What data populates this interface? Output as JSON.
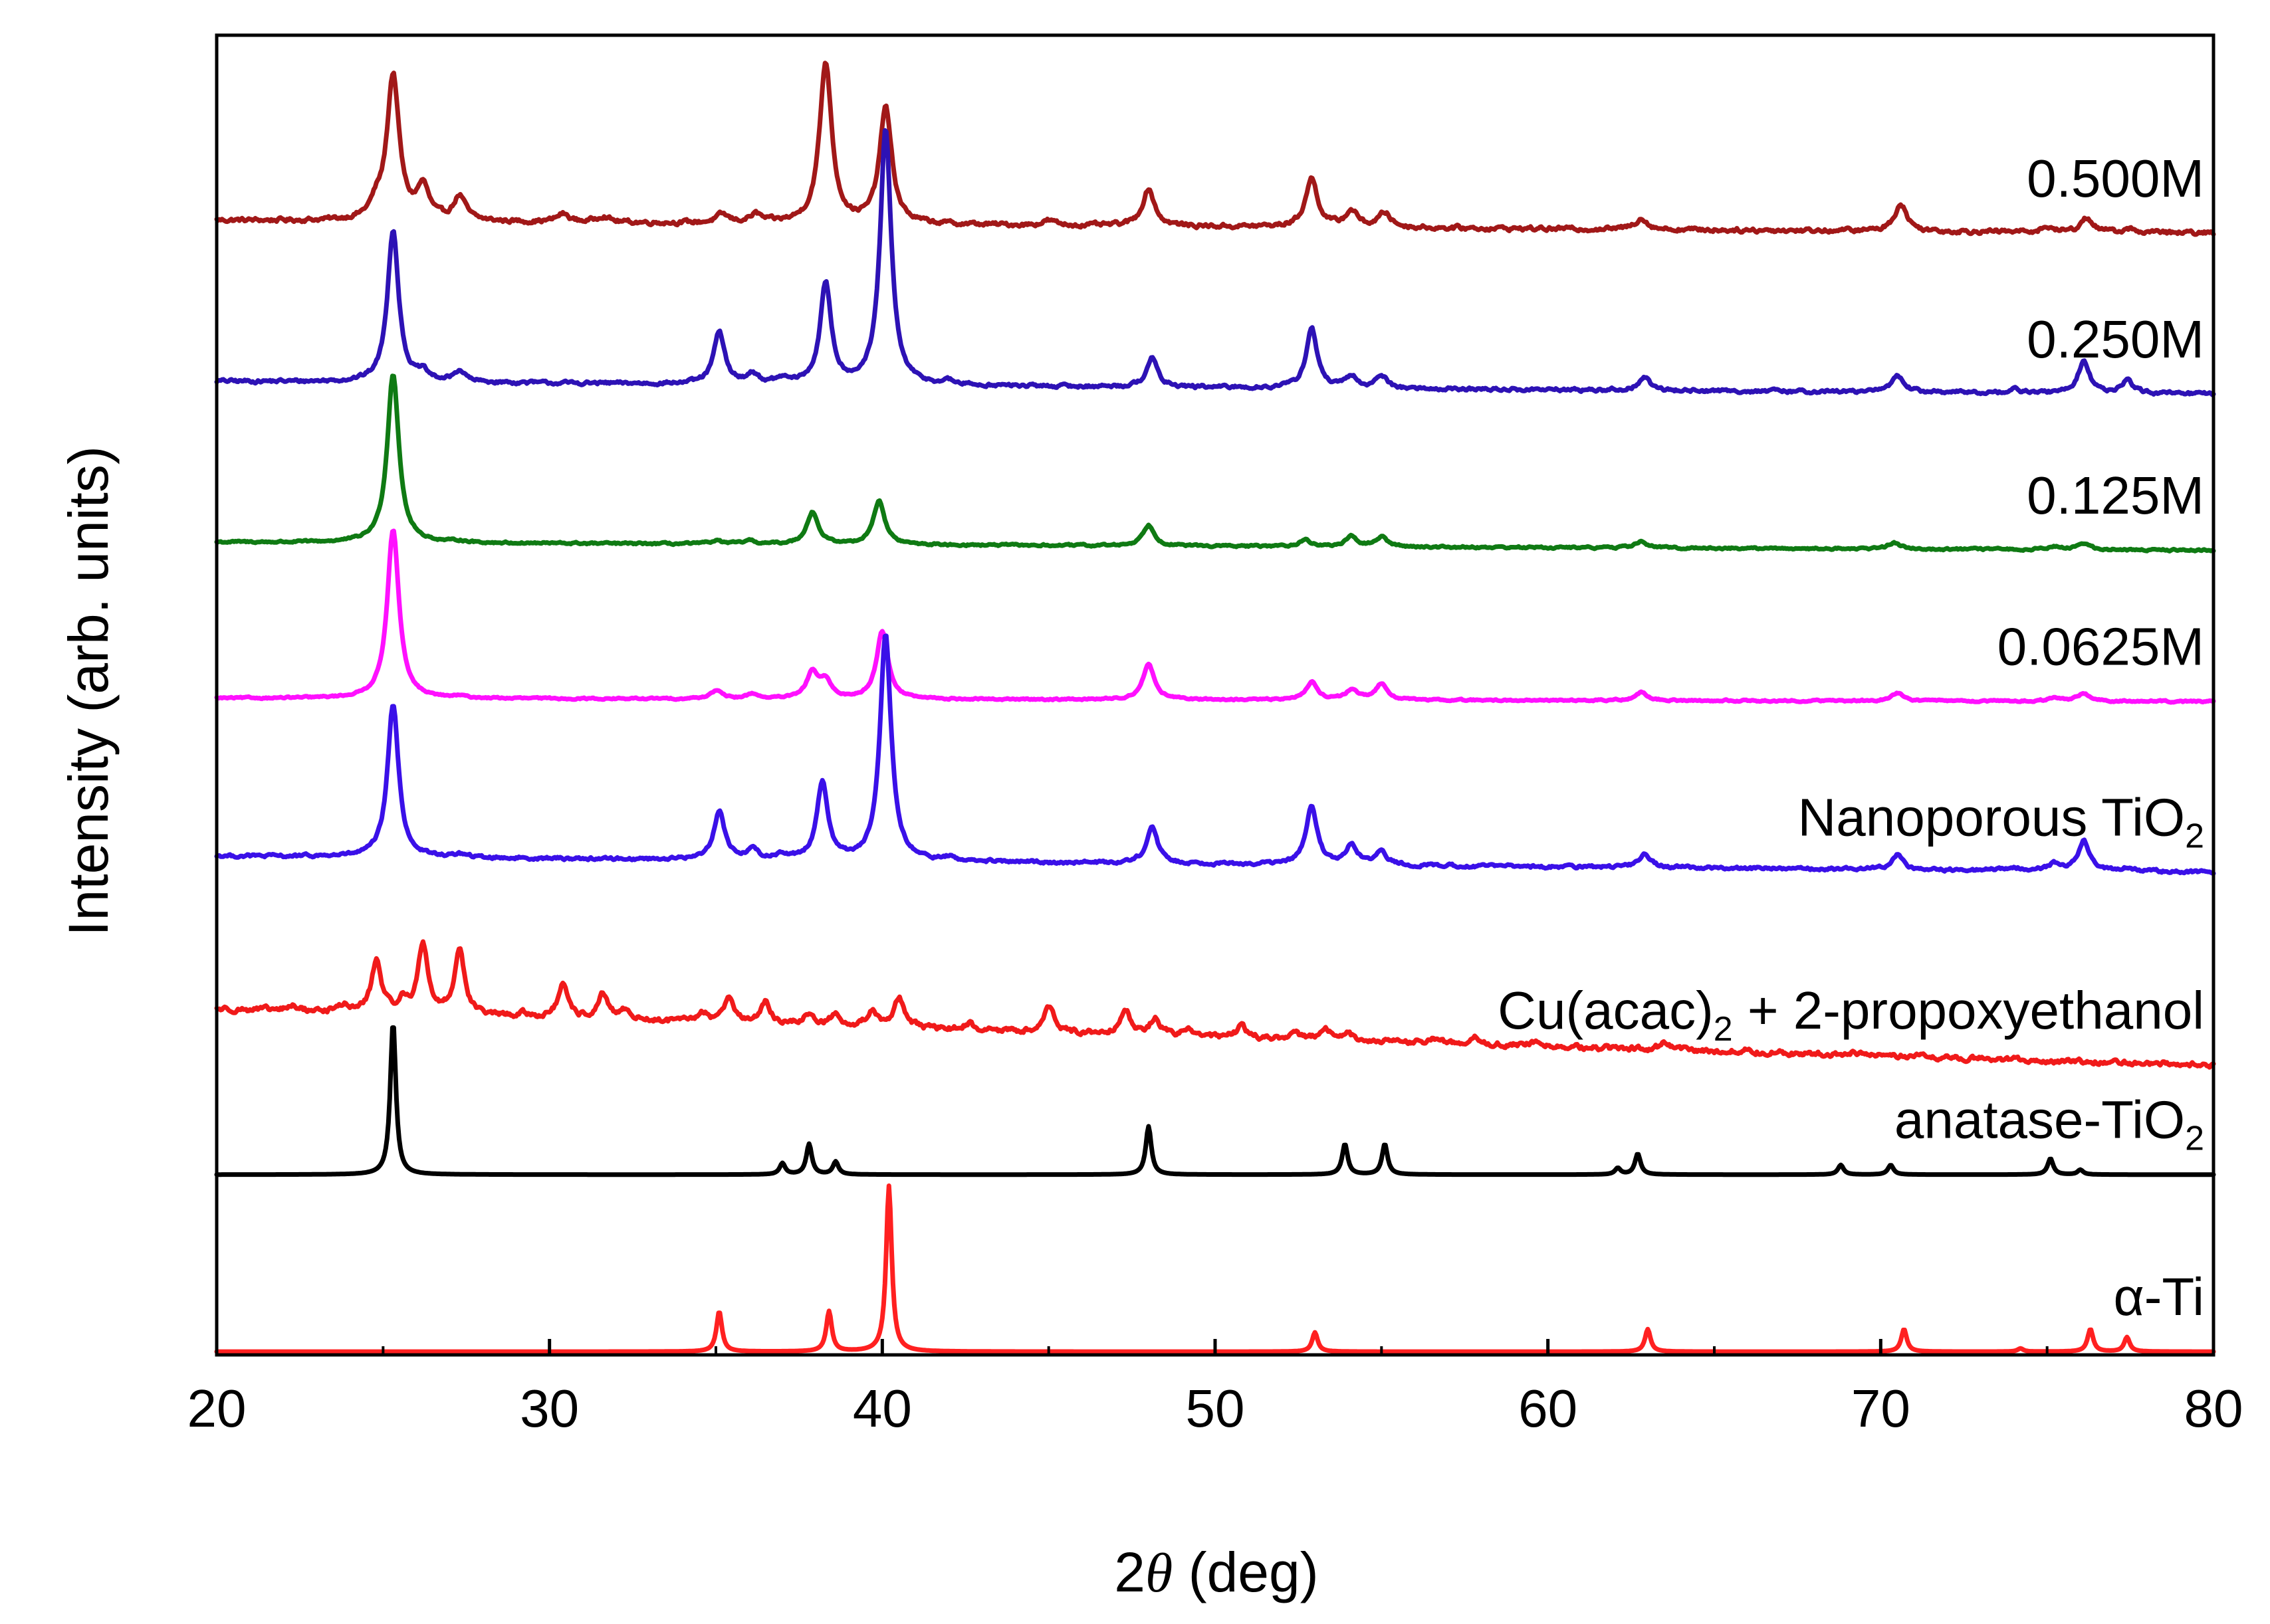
{
  "chart_data": {
    "type": "line",
    "title": "",
    "xlabel_prefix": "2",
    "xlabel_theta": "θ",
    "xlabel_suffix": " (deg)",
    "ylabel": "Intensity (arb. units)",
    "xlim": [
      20,
      80
    ],
    "ylim": [
      0,
      8.2
    ],
    "xticks": [
      20,
      30,
      40,
      50,
      60,
      70,
      80
    ],
    "yticks": [],
    "grid": false,
    "legend": "inline labels at right",
    "layout_note": "stacked XRD patterns, each trace offset vertically by its baseline",
    "series": [
      {
        "name": "0.500M",
        "label_main": "0.500M",
        "label_sub": "",
        "label_tail": "",
        "color": "#a11818",
        "baseline": 7.05,
        "slope": -0.08,
        "noise": 0.025,
        "width": 0.22,
        "peaks": [
          [
            24.8,
            0.08
          ],
          [
            25.3,
            0.9
          ],
          [
            26.2,
            0.2
          ],
          [
            27.3,
            0.15
          ],
          [
            30.4,
            0.05
          ],
          [
            31.6,
            0.04
          ],
          [
            35.2,
            0.05
          ],
          [
            36.2,
            0.05
          ],
          [
            38.3,
            1.0
          ],
          [
            40.1,
            0.72
          ],
          [
            45.0,
            0.03
          ],
          [
            48.0,
            0.23
          ],
          [
            52.9,
            0.3
          ],
          [
            54.1,
            0.1
          ],
          [
            55.1,
            0.09
          ],
          [
            62.8,
            0.07
          ],
          [
            70.6,
            0.17
          ],
          [
            75.0,
            0.03
          ],
          [
            76.2,
            0.09
          ],
          [
            77.5,
            0.02
          ]
        ]
      },
      {
        "name": "0.250M",
        "label_main": "0.250M",
        "label_sub": "",
        "label_tail": "",
        "color": "#2d12b5",
        "baseline": 6.05,
        "slope": -0.08,
        "noise": 0.02,
        "width": 0.2,
        "peaks": [
          [
            25.3,
            0.95
          ],
          [
            26.2,
            0.05
          ],
          [
            27.3,
            0.07
          ],
          [
            35.1,
            0.32
          ],
          [
            36.1,
            0.06
          ],
          [
            37.0,
            0.03
          ],
          [
            38.3,
            0.62
          ],
          [
            40.1,
            1.58
          ],
          [
            42.0,
            0.02
          ],
          [
            48.1,
            0.18
          ],
          [
            52.9,
            0.37
          ],
          [
            54.1,
            0.07
          ],
          [
            55.0,
            0.08
          ],
          [
            62.9,
            0.08
          ],
          [
            70.5,
            0.11
          ],
          [
            74.0,
            0.02
          ],
          [
            76.1,
            0.2
          ],
          [
            77.4,
            0.08
          ]
        ]
      },
      {
        "name": "0.125M",
        "label_main": "0.125M",
        "label_sub": "",
        "label_tail": "",
        "color": "#0f7a13",
        "baseline": 5.05,
        "slope": -0.05,
        "noise": 0.012,
        "width": 0.21,
        "peaks": [
          [
            25.3,
            1.05
          ],
          [
            27.3,
            0.01
          ],
          [
            35.0,
            0.02
          ],
          [
            36.0,
            0.02
          ],
          [
            37.9,
            0.2
          ],
          [
            39.9,
            0.27
          ],
          [
            48.0,
            0.13
          ],
          [
            52.7,
            0.04
          ],
          [
            54.1,
            0.06
          ],
          [
            55.0,
            0.06
          ],
          [
            62.8,
            0.04
          ],
          [
            70.4,
            0.04
          ],
          [
            75.2,
            0.02
          ],
          [
            76.1,
            0.04
          ]
        ]
      },
      {
        "name": "0.0625M",
        "label_main": "0.0625M",
        "label_sub": "",
        "label_tail": "",
        "color": "#ff10ff",
        "baseline": 4.08,
        "slope": -0.02,
        "noise": 0.01,
        "width": 0.21,
        "peaks": [
          [
            25.3,
            1.05
          ],
          [
            27.3,
            0.01
          ],
          [
            35.0,
            0.05
          ],
          [
            36.1,
            0.03
          ],
          [
            37.9,
            0.16
          ],
          [
            38.3,
            0.1
          ],
          [
            40.0,
            0.42
          ],
          [
            48.0,
            0.22
          ],
          [
            52.9,
            0.11
          ],
          [
            54.1,
            0.06
          ],
          [
            55.0,
            0.1
          ],
          [
            62.8,
            0.05
          ],
          [
            70.5,
            0.05
          ],
          [
            75.2,
            0.02
          ],
          [
            76.1,
            0.05
          ]
        ]
      },
      {
        "name": "Nanoporous TiO2",
        "label_main": "Nanoporous TiO",
        "label_sub": "2",
        "label_tail": "",
        "color": "#3a10e8",
        "baseline": 3.1,
        "slope": -0.1,
        "noise": 0.018,
        "width": 0.2,
        "peaks": [
          [
            25.3,
            0.95
          ],
          [
            27.3,
            0.02
          ],
          [
            35.1,
            0.3
          ],
          [
            36.1,
            0.06
          ],
          [
            37.0,
            0.03
          ],
          [
            38.2,
            0.48
          ],
          [
            40.1,
            1.4
          ],
          [
            42.0,
            0.02
          ],
          [
            48.1,
            0.23
          ],
          [
            52.9,
            0.36
          ],
          [
            54.1,
            0.12
          ],
          [
            55.0,
            0.08
          ],
          [
            62.9,
            0.09
          ],
          [
            70.5,
            0.09
          ],
          [
            74.0,
            0.02
          ],
          [
            75.2,
            0.04
          ],
          [
            76.1,
            0.19
          ],
          [
            77.4,
            0.02
          ]
        ]
      },
      {
        "name": "Cu(acac)2 + 2-propoxyethanol",
        "label_main": "Cu(acac)",
        "label_sub": "2",
        "label_tail": " + 2-propoxyethanol",
        "color": "#f01a1a",
        "baseline": 2.15,
        "slope": -0.35,
        "noise": 0.03,
        "width": 0.18,
        "peaks": [
          [
            22.3,
            0.03
          ],
          [
            23.8,
            0.04
          ],
          [
            24.8,
            0.32
          ],
          [
            25.6,
            0.07
          ],
          [
            26.2,
            0.43
          ],
          [
            27.3,
            0.41
          ],
          [
            29.2,
            0.02
          ],
          [
            30.4,
            0.2
          ],
          [
            31.6,
            0.15
          ],
          [
            32.3,
            0.06
          ],
          [
            34.6,
            0.06
          ],
          [
            35.4,
            0.17
          ],
          [
            36.5,
            0.13
          ],
          [
            37.8,
            0.07
          ],
          [
            38.6,
            0.07
          ],
          [
            39.7,
            0.1
          ],
          [
            40.5,
            0.19
          ],
          [
            42.6,
            0.04
          ],
          [
            45.0,
            0.17
          ],
          [
            47.3,
            0.16
          ],
          [
            48.2,
            0.1
          ],
          [
            49.2,
            0.04
          ],
          [
            50.8,
            0.07
          ],
          [
            52.4,
            0.04
          ],
          [
            53.3,
            0.07
          ],
          [
            54.0,
            0.04
          ],
          [
            56.6,
            0.03
          ],
          [
            57.8,
            0.04
          ],
          [
            59.6,
            0.03
          ],
          [
            63.5,
            0.04
          ],
          [
            65.9,
            0.02
          ],
          [
            69.1,
            0.02
          ]
        ]
      },
      {
        "name": "anatase-TiO2",
        "label_main": "anatase-TiO",
        "label_sub": "2",
        "label_tail": "",
        "color": "#000000",
        "baseline": 1.12,
        "slope": 0.0,
        "noise": 0.0,
        "width": 0.1,
        "peaks": [
          [
            25.3,
            0.95
          ],
          [
            37.0,
            0.07
          ],
          [
            37.8,
            0.19
          ],
          [
            38.6,
            0.08
          ],
          [
            48.0,
            0.3
          ],
          [
            53.9,
            0.19
          ],
          [
            55.1,
            0.19
          ],
          [
            62.1,
            0.04
          ],
          [
            62.7,
            0.13
          ],
          [
            68.8,
            0.06
          ],
          [
            70.3,
            0.06
          ],
          [
            75.1,
            0.1
          ],
          [
            76.0,
            0.03
          ]
        ]
      },
      {
        "name": "α-Ti",
        "label_main": "α-Ti",
        "label_sub": "",
        "label_tail": "",
        "color": "#ff2020",
        "baseline": 0.02,
        "slope": 0.0,
        "noise": 0.0,
        "width": 0.1,
        "peaks": [
          [
            35.1,
            0.25
          ],
          [
            38.4,
            0.25
          ],
          [
            40.2,
            1.03
          ],
          [
            53.0,
            0.12
          ],
          [
            63.0,
            0.14
          ],
          [
            70.7,
            0.14
          ],
          [
            74.2,
            0.02
          ],
          [
            76.3,
            0.14
          ],
          [
            77.4,
            0.09
          ]
        ]
      }
    ]
  }
}
